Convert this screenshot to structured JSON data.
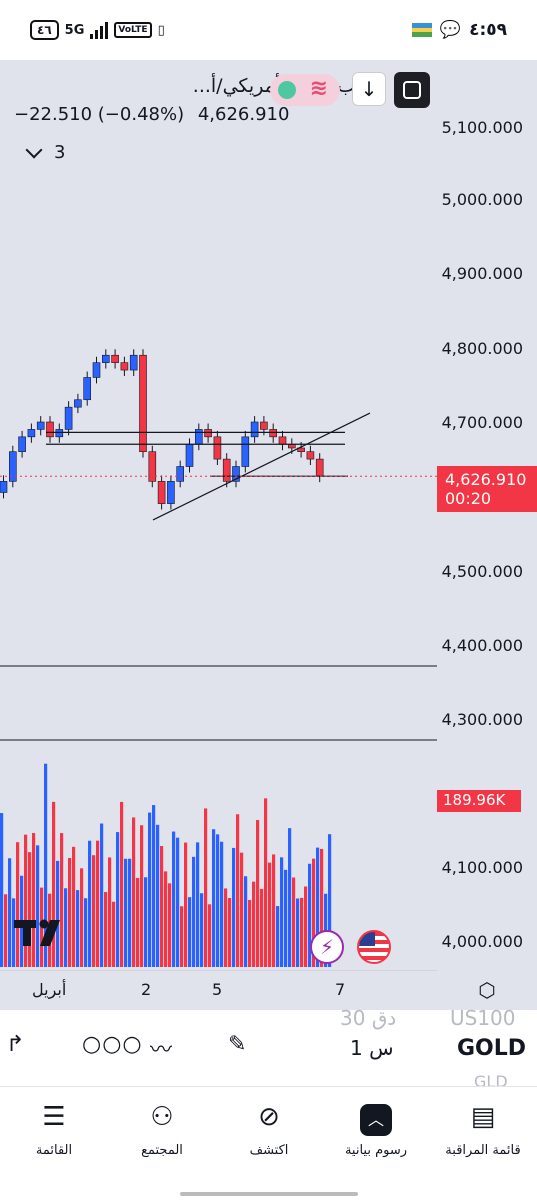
{
  "status_bar": {
    "battery": "٤٦",
    "network": "5G",
    "volte": "VoLTE",
    "time": "٤:٥٩"
  },
  "symbol": {
    "title": "الذهب (دولار أمريكي/أ...",
    "icon": "gold-bars-icon",
    "change": "−22.510 (−0.48%)",
    "last_price": "4,626.910",
    "collapsed_count": "3"
  },
  "price_scale": {
    "ticks": [
      "5,100.000",
      "5,000.000",
      "4,900.000",
      "4,800.000",
      "4,700.000",
      "4,500.000",
      "4,400.000",
      "4,300.000",
      "4,100.000",
      "4,000.000"
    ],
    "current_price": "4,626.910",
    "countdown": "00:20",
    "volume_tag": "189.96K",
    "colors": {
      "up": "#2962ff",
      "down": "#f23645"
    }
  },
  "time_axis": {
    "labels": [
      "أبريل",
      "2",
      "5",
      "7"
    ]
  },
  "chart_data": {
    "type": "candlestick",
    "ylim": [
      3980,
      5140
    ],
    "last_price": 4626.91,
    "candles_close_approx": [
      4620,
      4660,
      4680,
      4690,
      4700,
      4680,
      4690,
      4720,
      4730,
      4760,
      4780,
      4790,
      4780,
      4770,
      4790,
      4660,
      4620,
      4590,
      4620,
      4640,
      4670,
      4690,
      4680,
      4650,
      4620,
      4640,
      4680,
      4700,
      4690,
      4680,
      4670,
      4665,
      4660,
      4650,
      4626.91
    ],
    "volume_bars": {
      "count": 83,
      "max_label": "189.96K"
    }
  },
  "toolbar": {
    "timeframe": "1 س",
    "symbol_code": "GOLD",
    "ghost_above_tf": "30 دق",
    "ghost_above_sym": "US100",
    "ghost_below_sym": "GLD"
  },
  "bottom_nav": {
    "items": [
      {
        "label": "القائمة",
        "icon": "menu-icon"
      },
      {
        "label": "المجتمع",
        "icon": "community-icon"
      },
      {
        "label": "اكتشف",
        "icon": "compass-icon"
      },
      {
        "label": "رسوم بيانية",
        "icon": "chart-icon"
      },
      {
        "label": "قائمة المراقبة",
        "icon": "watchlist-icon"
      }
    ]
  }
}
